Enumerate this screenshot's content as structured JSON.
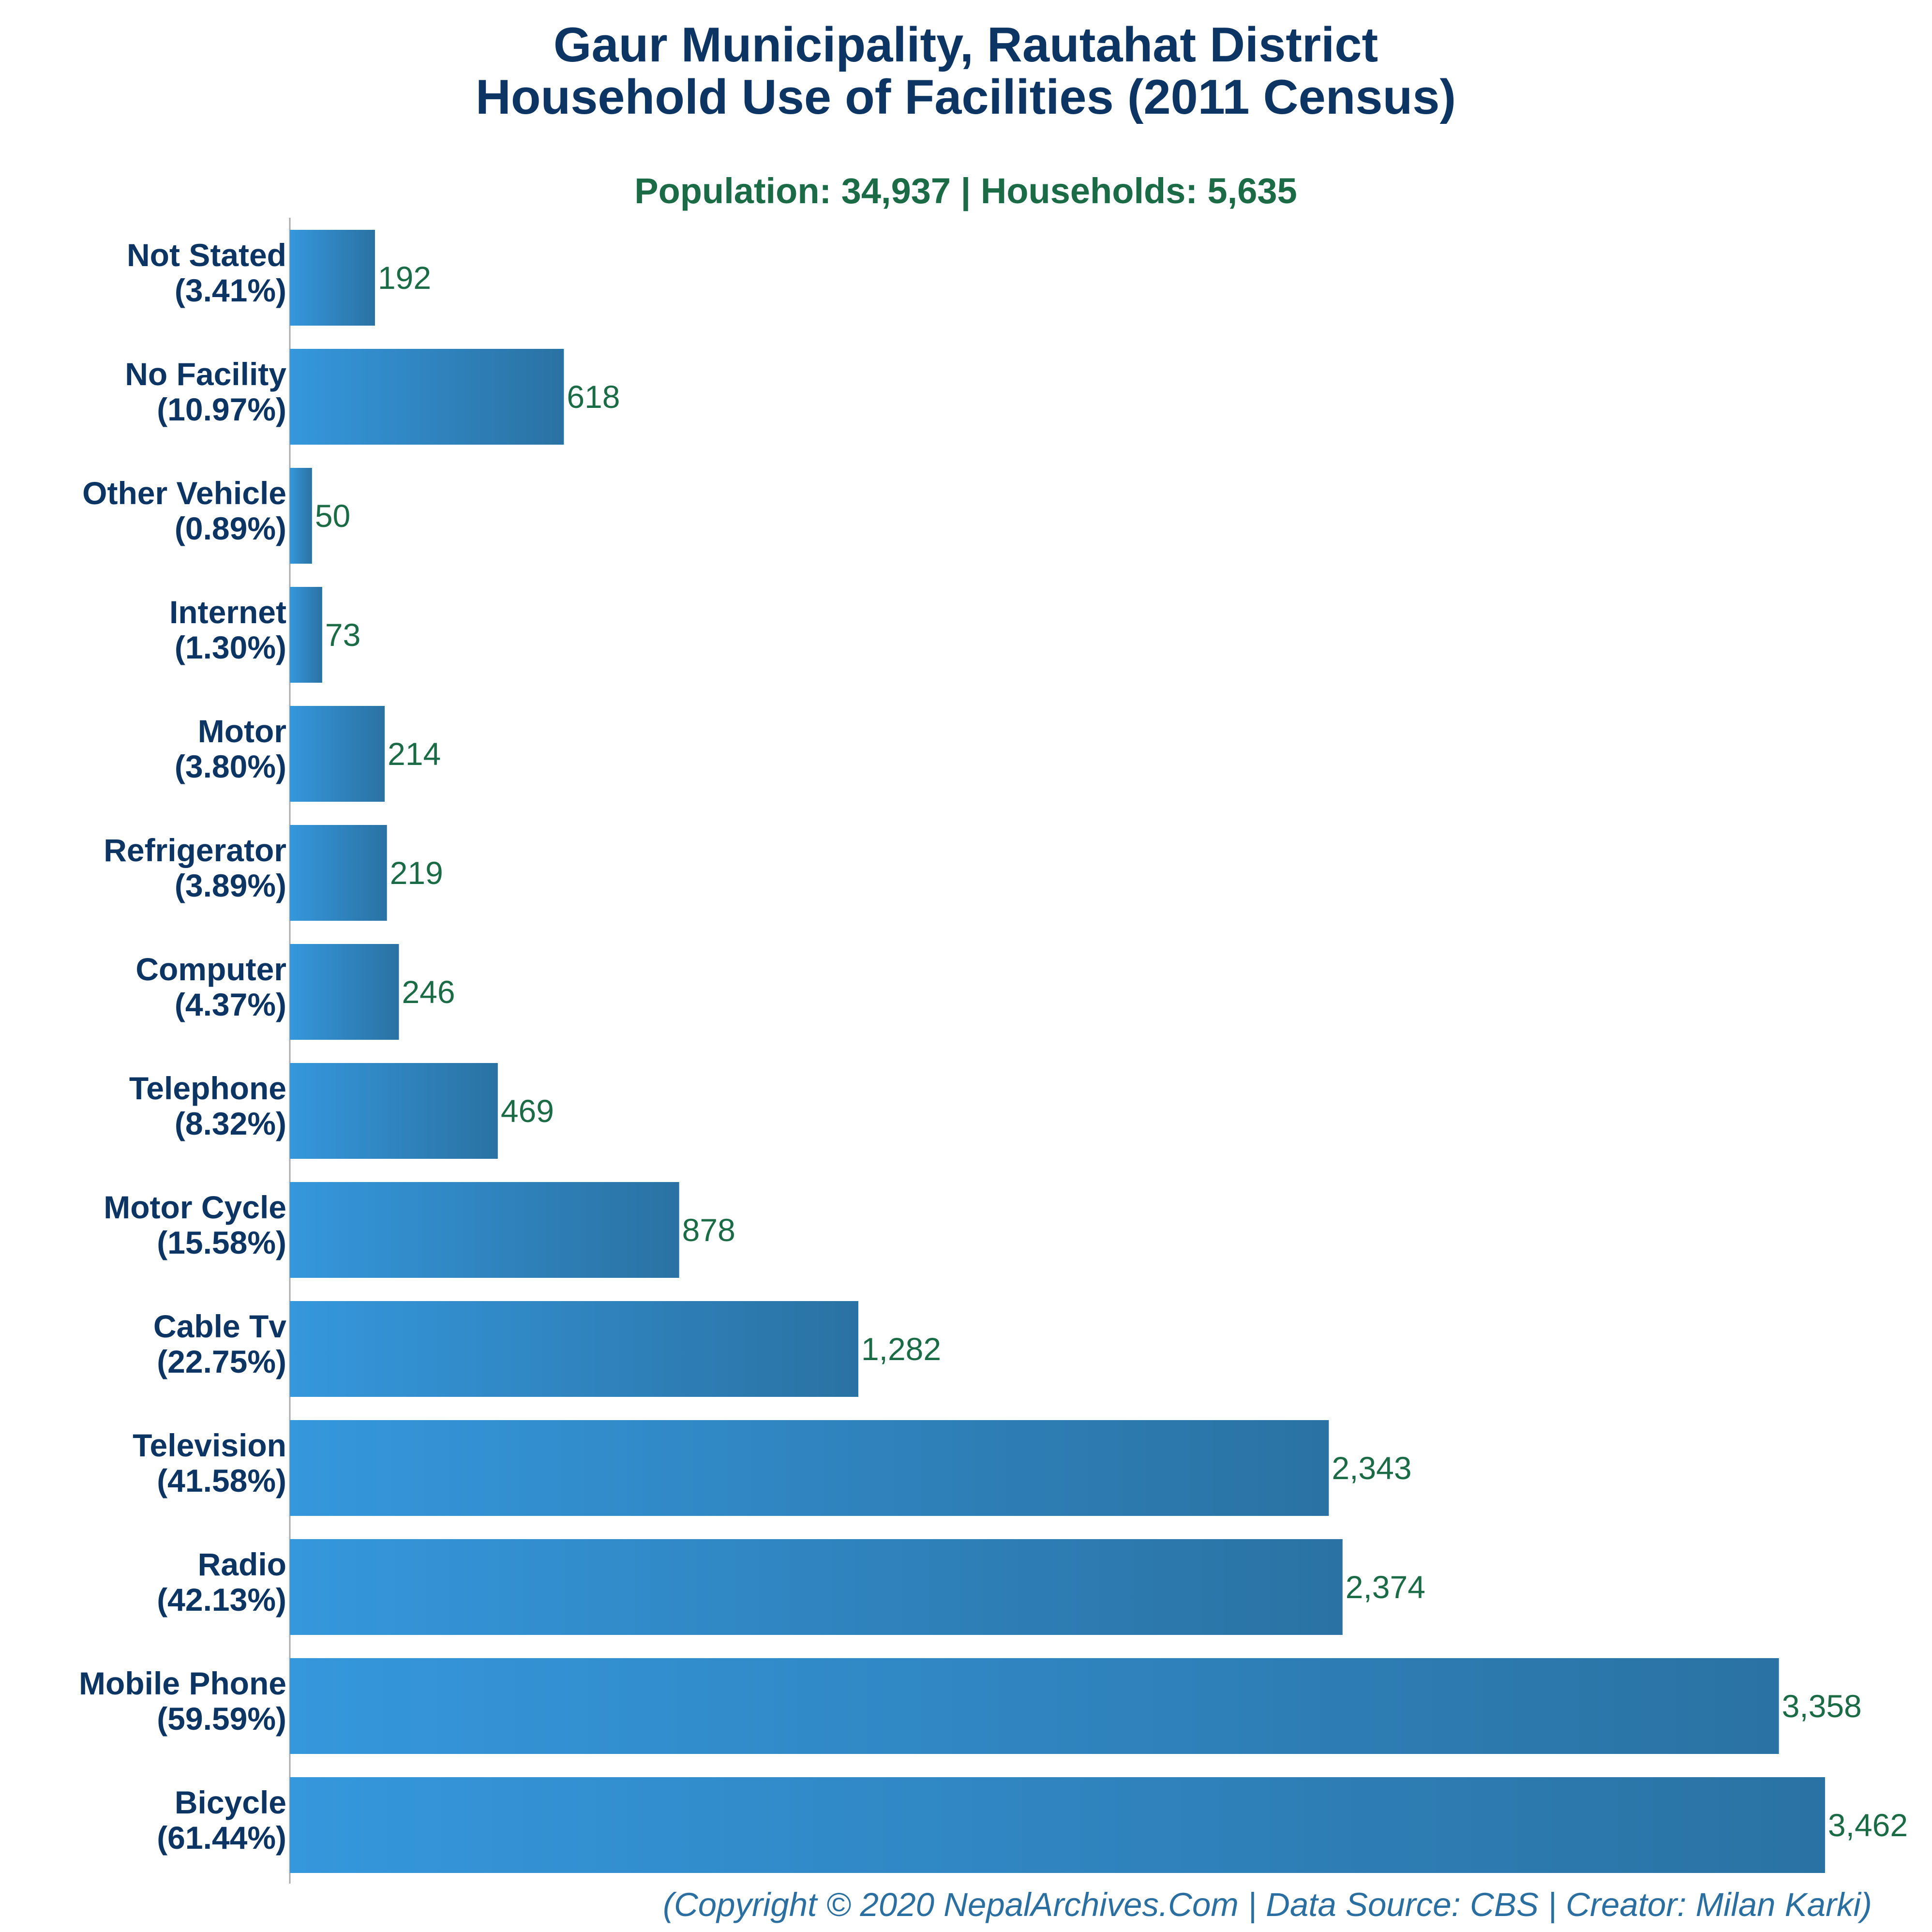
{
  "chart_data": {
    "type": "bar",
    "orientation": "horizontal",
    "title_line1": "Gaur Municipality, Rautahat District",
    "title_line2": "Household Use of Facilities (2011 Census)",
    "subtitle": "Population: 34,937 | Households: 5,635",
    "categories": [
      {
        "name": "Not Stated",
        "pct": "(3.41%)",
        "value": 192,
        "value_label": "192"
      },
      {
        "name": "No Facility",
        "pct": "(10.97%)",
        "value": 618,
        "value_label": "618"
      },
      {
        "name": "Other Vehicle",
        "pct": "(0.89%)",
        "value": 50,
        "value_label": "50"
      },
      {
        "name": "Internet",
        "pct": "(1.30%)",
        "value": 73,
        "value_label": "73"
      },
      {
        "name": "Motor",
        "pct": "(3.80%)",
        "value": 214,
        "value_label": "214"
      },
      {
        "name": "Refrigerator",
        "pct": "(3.89%)",
        "value": 219,
        "value_label": "219"
      },
      {
        "name": "Computer",
        "pct": "(4.37%)",
        "value": 246,
        "value_label": "246"
      },
      {
        "name": "Telephone",
        "pct": "(8.32%)",
        "value": 469,
        "value_label": "469"
      },
      {
        "name": "Motor Cycle",
        "pct": "(15.58%)",
        "value": 878,
        "value_label": "878"
      },
      {
        "name": "Cable Tv",
        "pct": "(22.75%)",
        "value": 1282,
        "value_label": "1,282"
      },
      {
        "name": "Television",
        "pct": "(41.58%)",
        "value": 2343,
        "value_label": "2,343"
      },
      {
        "name": "Radio",
        "pct": "(42.13%)",
        "value": 2374,
        "value_label": "2,374"
      },
      {
        "name": "Mobile Phone",
        "pct": "(59.59%)",
        "value": 3358,
        "value_label": "3,358"
      },
      {
        "name": "Bicycle",
        "pct": "(61.44%)",
        "value": 3462,
        "value_label": "3,462"
      }
    ],
    "grid": false,
    "legend": "none",
    "colors": {
      "bar_light": "#3597dc",
      "bar_dark": "#2a72a3",
      "title": "#0d3563",
      "value": "#1a6b46",
      "credit": "#2b6fa0"
    }
  },
  "footer": {
    "credit": "(Copyright © 2020 NepalArchives.Com | Data Source: CBS | Creator: Milan Karki)"
  }
}
